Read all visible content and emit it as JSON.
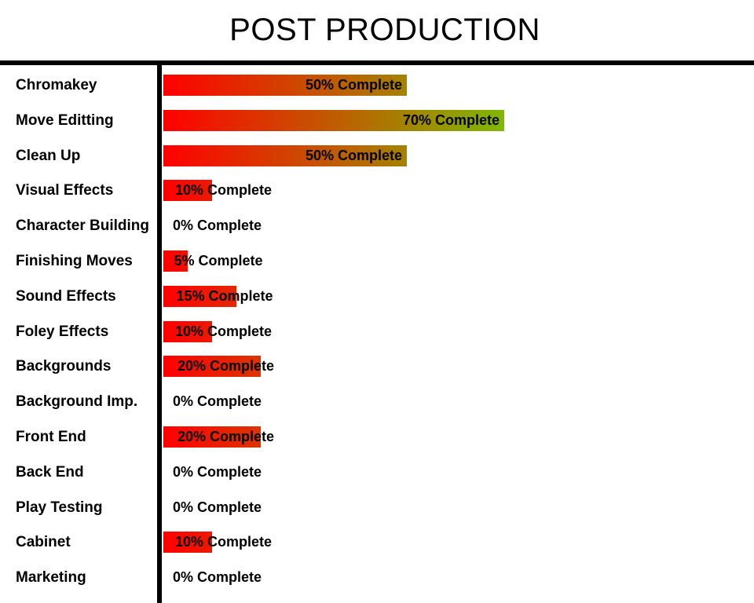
{
  "chart_data": {
    "type": "bar",
    "orientation": "horizontal",
    "title": "POST PRODUCTION",
    "xlim": [
      0,
      100
    ],
    "grid": false,
    "legend": "none",
    "categories": [
      "Chromakey",
      "Move Editting",
      "Clean Up",
      "Visual Effects",
      "Character Building",
      "Finishing Moves",
      "Sound Effects",
      "Foley Effects",
      "Backgrounds",
      "Background Imp.",
      "Front End",
      "Back End",
      "Play Testing",
      "Cabinet",
      "Marketing"
    ],
    "values": [
      50,
      70,
      50,
      10,
      0,
      5,
      15,
      10,
      20,
      0,
      20,
      0,
      0,
      10,
      0
    ],
    "labels": [
      "50% Complete",
      "70% Complete",
      "50% Complete",
      "10% Complete",
      "0% Complete",
      "5% Complete",
      "15% Complete",
      "10% Complete",
      "20% Complete",
      "0% Complete",
      "20% Complete",
      "0% Complete",
      "0% Complete",
      "10% Complete",
      "0% Complete"
    ],
    "colors": {
      "low": "#ff0000",
      "high": "#7fb800"
    }
  }
}
